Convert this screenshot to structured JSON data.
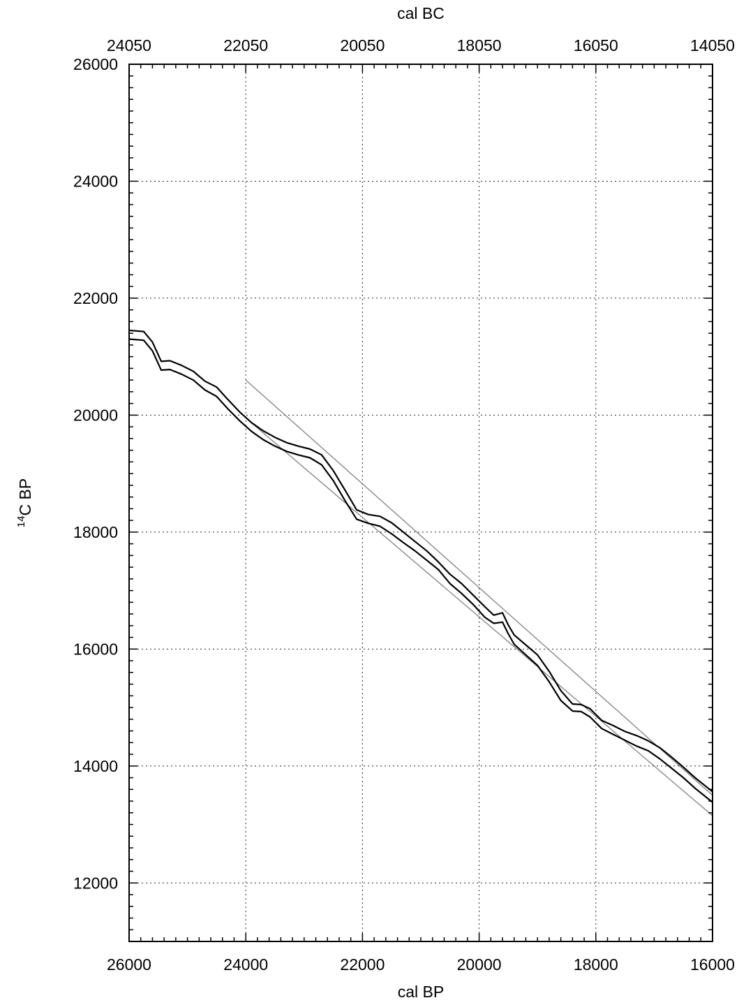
{
  "chart_data": {
    "type": "line",
    "xlabel_bottom": "cal BP",
    "xlabel_top": "cal BC",
    "ylabel_sup": "14",
    "ylabel_main": "C BP",
    "xlim": [
      26000,
      16000
    ],
    "ylim": [
      11000,
      26000
    ],
    "x_ticks": [
      26000,
      24000,
      22000,
      20000,
      18000,
      16000
    ],
    "x_tick_labels": [
      "26000",
      "24000",
      "22000",
      "20000",
      "18000",
      "16000"
    ],
    "x_top_tick_labels": [
      "24050",
      "22050",
      "20050",
      "18050",
      "16050",
      "14050"
    ],
    "y_ticks": [
      12000,
      14000,
      16000,
      18000,
      20000,
      22000,
      24000,
      26000
    ],
    "y_tick_labels": [
      "12000",
      "14000",
      "16000",
      "18000",
      "20000",
      "22000",
      "24000",
      "26000"
    ],
    "grid": true,
    "series": [
      {
        "role": "upper-envelope",
        "color": "#000000",
        "x": [
          26000,
          25750,
          25600,
          25450,
          25300,
          25100,
          24900,
          24700,
          24500,
          24300,
          24100,
          23900,
          23700,
          23500,
          23300,
          23100,
          22900,
          22700,
          22500,
          22300,
          22100,
          21900,
          21700,
          21500,
          21300,
          21100,
          20900,
          20700,
          20500,
          20300,
          20100,
          19900,
          19750,
          19600,
          19500,
          19400,
          19200,
          19000,
          18800,
          18600,
          18400,
          18250,
          18100,
          17900,
          17700,
          17500,
          17300,
          17100,
          16900,
          16700,
          16500,
          16300,
          16000
        ],
        "y": [
          21450,
          21430,
          21250,
          20920,
          20930,
          20850,
          20750,
          20580,
          20480,
          20260,
          20050,
          19870,
          19730,
          19620,
          19530,
          19470,
          19420,
          19320,
          19050,
          18720,
          18380,
          18300,
          18270,
          18160,
          18000,
          17840,
          17680,
          17490,
          17280,
          17120,
          16920,
          16720,
          16580,
          16620,
          16410,
          16240,
          16070,
          15900,
          15620,
          15290,
          15060,
          15050,
          14980,
          14780,
          14690,
          14590,
          14520,
          14430,
          14310,
          14150,
          13980,
          13800,
          13560
        ]
      },
      {
        "role": "lower-envelope",
        "color": "#000000",
        "x": [
          26000,
          25750,
          25600,
          25450,
          25300,
          25100,
          24900,
          24700,
          24500,
          24300,
          24100,
          23900,
          23700,
          23500,
          23300,
          23100,
          22900,
          22700,
          22500,
          22300,
          22100,
          21900,
          21700,
          21500,
          21300,
          21100,
          20900,
          20700,
          20500,
          20300,
          20100,
          19900,
          19750,
          19600,
          19500,
          19400,
          19200,
          19000,
          18800,
          18600,
          18400,
          18250,
          18100,
          17900,
          17700,
          17500,
          17300,
          17100,
          16900,
          16700,
          16500,
          16300,
          16000
        ],
        "y": [
          21300,
          21280,
          21100,
          20770,
          20780,
          20700,
          20600,
          20430,
          20320,
          20100,
          19900,
          19720,
          19580,
          19470,
          19380,
          19320,
          19270,
          19150,
          18880,
          18540,
          18220,
          18150,
          18100,
          17970,
          17820,
          17680,
          17520,
          17360,
          17120,
          16950,
          16760,
          16540,
          16440,
          16460,
          16260,
          16080,
          15900,
          15720,
          15440,
          15120,
          14940,
          14930,
          14840,
          14640,
          14540,
          14440,
          14340,
          14260,
          14120,
          13960,
          13800,
          13620,
          13380
        ]
      },
      {
        "role": "reference-line-upper",
        "color": "#777777",
        "x": [
          24000,
          16000
        ],
        "y": [
          20600,
          13500
        ]
      },
      {
        "role": "reference-line-lower",
        "color": "#777777",
        "x": [
          24000,
          16000
        ],
        "y": [
          19950,
          13150
        ]
      }
    ]
  }
}
